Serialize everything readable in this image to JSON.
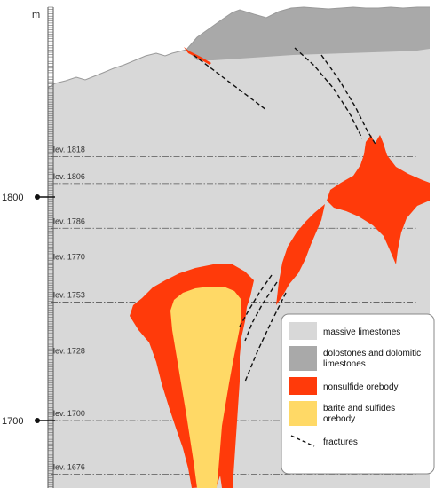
{
  "axis": {
    "unit": "m",
    "ticks": [
      {
        "value": 1800,
        "label": "1800"
      },
      {
        "value": 1700,
        "label": "1700"
      }
    ]
  },
  "levels": [
    {
      "value": 1818,
      "label": "lev. 1818"
    },
    {
      "value": 1806,
      "label": "lev. 1806"
    },
    {
      "value": 1786,
      "label": "lev. 1786"
    },
    {
      "value": 1770,
      "label": "lev. 1770"
    },
    {
      "value": 1753,
      "label": "lev. 1753"
    },
    {
      "value": 1728,
      "label": "lev. 1728"
    },
    {
      "value": 1700,
      "label": "lev. 1700"
    },
    {
      "value": 1676,
      "label": "lev. 1676"
    }
  ],
  "legend": {
    "items": [
      {
        "lines": [
          "massive limestones"
        ],
        "color": "#d8d8d8",
        "kind": "swatch"
      },
      {
        "lines": [
          "dolostones and dolomitic",
          "limestones"
        ],
        "color": "#a9a9a9",
        "kind": "swatch"
      },
      {
        "lines": [
          "nonsulfide orebody"
        ],
        "color": "#ff3a0a",
        "kind": "swatch"
      },
      {
        "lines": [
          "barite and sulfides",
          "orebody"
        ],
        "color": "#ffd966",
        "kind": "swatch"
      },
      {
        "lines": [
          "fractures"
        ],
        "color": "#111111",
        "kind": "dashed-line"
      }
    ]
  },
  "colors": {
    "massive_limestones": "#d8d8d8",
    "dolostones": "#a9a9a9",
    "nonsulfide": "#ff3a0a",
    "barite": "#ffd966",
    "fracture": "#111111"
  }
}
